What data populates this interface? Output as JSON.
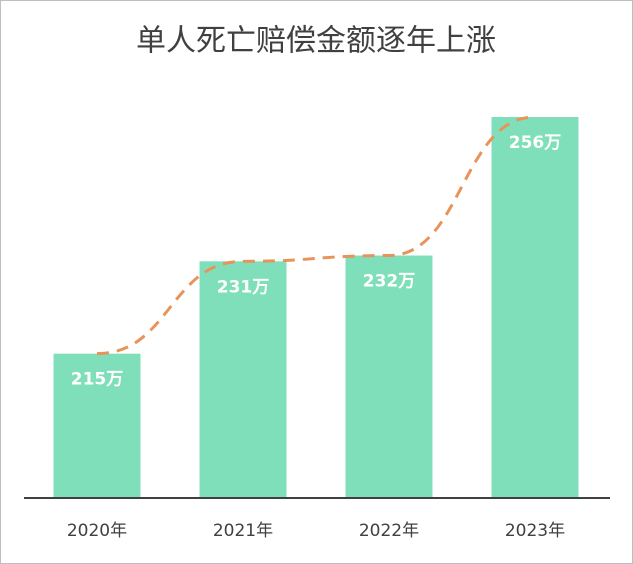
{
  "chart_data": {
    "type": "bar",
    "title": "单人死亡赔偿金额逐年上涨",
    "categories": [
      "2020年",
      "2021年",
      "2022年",
      "2023年"
    ],
    "values": [
      215,
      231,
      232,
      256
    ],
    "value_labels": [
      "215万",
      "231万",
      "232万",
      "256万"
    ],
    "color": "#80dfbb",
    "trend_color": "#e8935a",
    "ylim": [
      190,
      256
    ]
  }
}
